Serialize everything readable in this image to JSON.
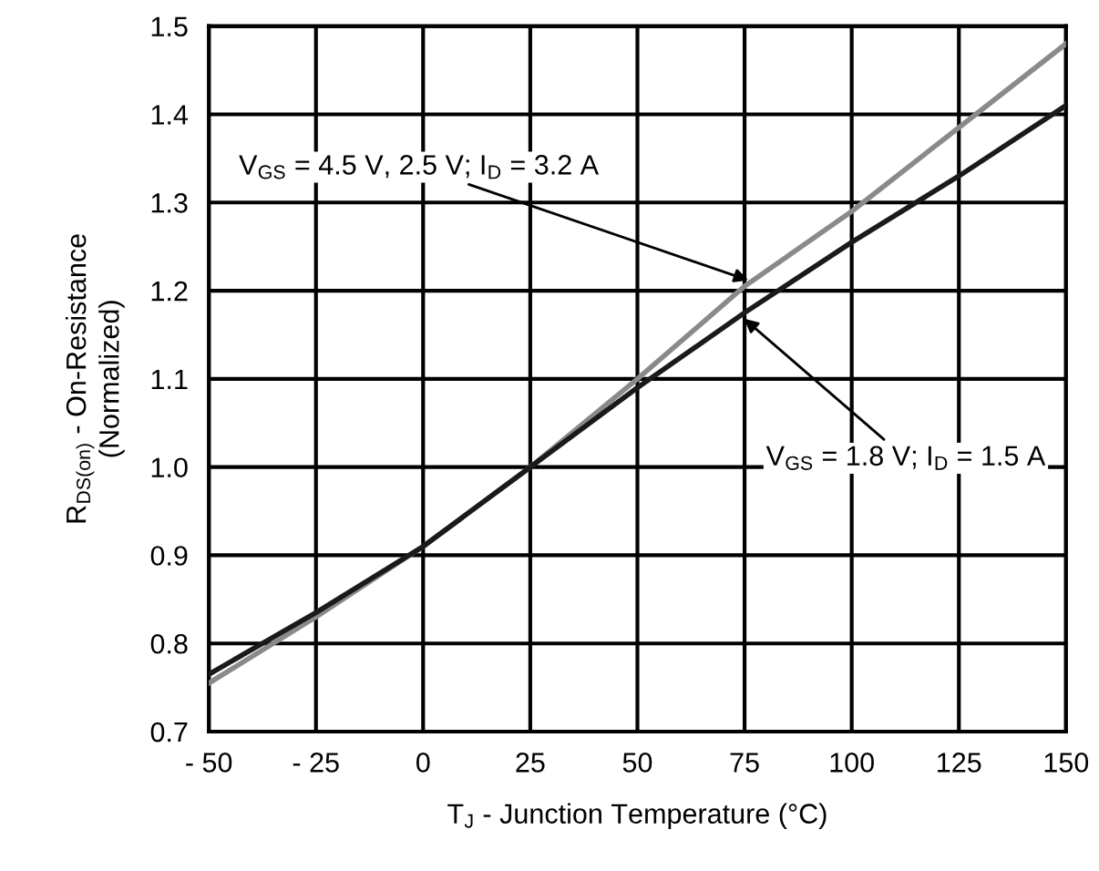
{
  "chart_data": {
    "type": "line",
    "xlabel": "T$_{J}$ - Junction Temperature (°C)",
    "ylabel": "R$_{DS(on)}$ - On-Resistance\n(Normalized)",
    "series": [
      {
        "color": "#8a8a8a",
        "x": [
          -50,
          -25,
          0,
          25,
          50,
          75,
          100,
          125,
          150
        ],
        "values": [
          0.755,
          0.83,
          0.91,
          1.0,
          1.1,
          1.205,
          1.29,
          1.385,
          1.48
        ]
      },
      {
        "color": "#1a1a1a",
        "x": [
          -50,
          -25,
          0,
          25,
          50,
          75,
          100,
          125,
          150
        ],
        "values": [
          0.765,
          0.835,
          0.91,
          1.0,
          1.09,
          1.175,
          1.255,
          1.33,
          1.41
        ]
      }
    ],
    "annotations": [
      {
        "text": "V$_{GS}$ = 4.5 V, 2.5 V; I$_{D}$ = 3.2 A",
        "x": 77,
        "y": 1.21
      },
      {
        "text": "V$_{GS}$ = 1.8 V; I$_{D}$ = 1.5 A",
        "x": 74,
        "y": 1.172
      }
    ],
    "xlim": [
      -50,
      150
    ],
    "ylim": [
      0.7,
      1.5
    ],
    "xticks": [
      {
        "value": -50,
        "label": "- 50"
      },
      {
        "value": -25,
        "label": "- 25"
      },
      0,
      25,
      50,
      75,
      100,
      125,
      150
    ],
    "yticks": [
      0.7,
      0.8,
      0.9,
      {
        "value": 1,
        "label": "1.0"
      },
      1.1,
      1.2,
      1.3,
      1.4,
      1.5
    ],
    "grid": true,
    "legend": false,
    "marker": "none",
    "line_style": "solid"
  }
}
